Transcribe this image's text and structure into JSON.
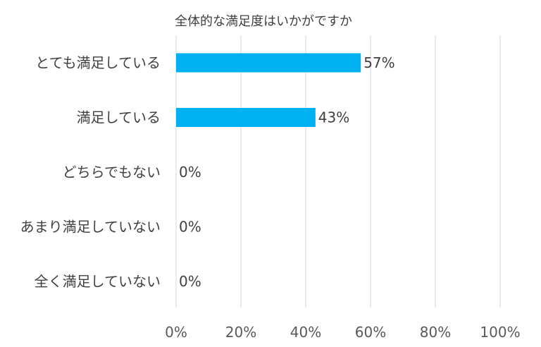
{
  "chart_data": {
    "type": "bar",
    "orientation": "horizontal",
    "title": "全体的な満足度はいかがですか",
    "categories": [
      "とても満足している",
      "満足している",
      "どちらでもない",
      "あまり満足していない",
      "全く満足していない"
    ],
    "values": [
      57,
      43,
      0,
      0,
      0
    ],
    "data_labels": [
      "57%",
      "43%",
      "0%",
      "0%",
      "0%"
    ],
    "xlim": [
      0,
      100
    ],
    "x_ticks": [
      0,
      20,
      40,
      60,
      80,
      100
    ],
    "x_tick_labels": [
      "0%",
      "20%",
      "40%",
      "60%",
      "80%",
      "100%"
    ],
    "grid": true,
    "legend": "none",
    "bar_color": "#00B0F0"
  }
}
